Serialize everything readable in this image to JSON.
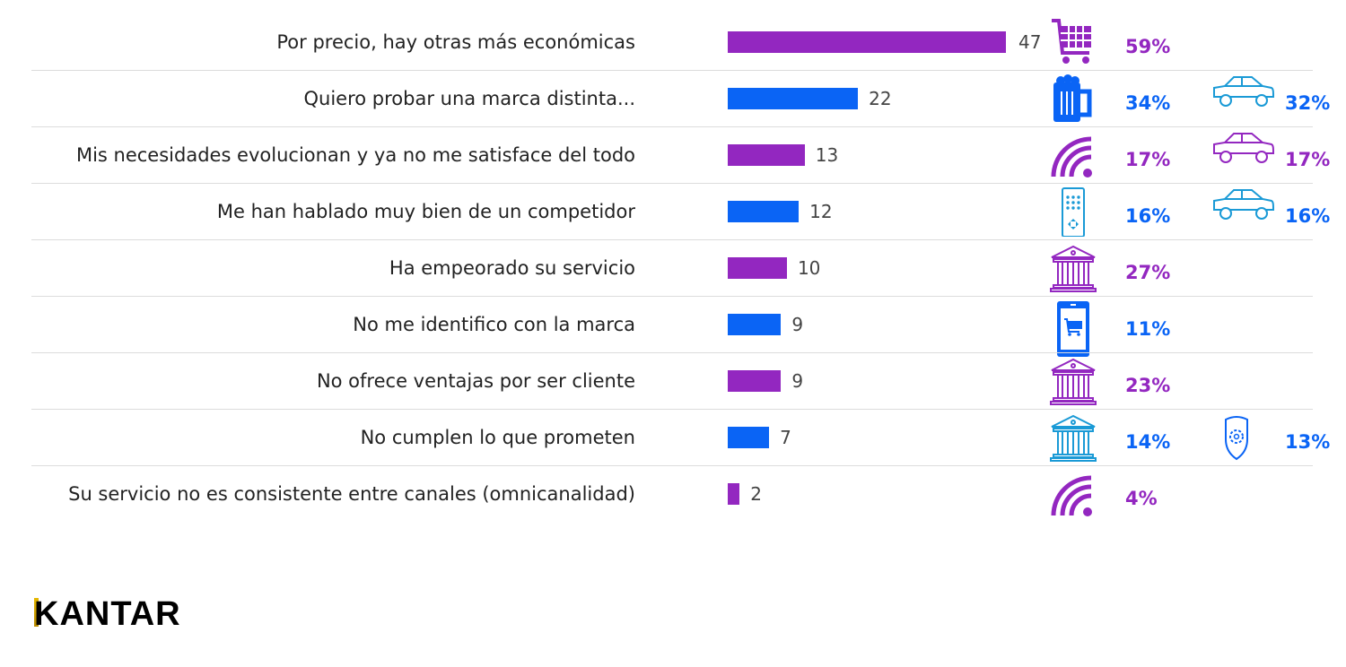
{
  "chart_data": {
    "type": "bar",
    "orientation": "horizontal",
    "categories": [
      "Por precio, hay otras más económicas",
      "Quiero probar una marca distinta...",
      "Mis necesidades evolucionan y ya no me satisface del todo",
      "Me han hablado muy bien de un competidor",
      "Ha empeorado su servicio",
      "No me identifico con la marca",
      "No ofrece ventajas por ser cliente",
      "No cumplen lo que prometen",
      "Su servicio no es consistente entre canales (omnicanalidad)"
    ],
    "values": [
      47,
      22,
      13,
      12,
      10,
      9,
      9,
      7,
      2
    ],
    "bar_colors": [
      "#9327c0",
      "#0a64f5",
      "#9327c0",
      "#0a64f5",
      "#9327c0",
      "#0a64f5",
      "#9327c0",
      "#0a64f5",
      "#9327c0"
    ],
    "grid": false,
    "annotations": [
      {
        "icon": "shopping-cart-icon",
        "pct": "59%",
        "color": "#9327c0"
      },
      {
        "icon": "beer-mug-icon",
        "pct": "34%",
        "color": "#0a64f5",
        "icon2": "car-icon",
        "pct2": "32%",
        "icon2_color": "#1a9ad6"
      },
      {
        "icon": "wifi-signal-icon",
        "pct": "17%",
        "color": "#9327c0",
        "icon2": "car-icon",
        "pct2": "17%",
        "icon2_color": "#9327c0"
      },
      {
        "icon": "remote-control-icon",
        "pct": "16%",
        "color": "#0a64f5",
        "icon2": "car-icon",
        "pct2": "16%",
        "icon2_color": "#1a9ad6"
      },
      {
        "icon": "bank-icon",
        "pct": "27%",
        "color": "#9327c0"
      },
      {
        "icon": "mobile-cart-icon",
        "pct": "11%",
        "color": "#0a64f5"
      },
      {
        "icon": "bank-icon",
        "pct": "23%",
        "color": "#9327c0"
      },
      {
        "icon": "bank-icon",
        "pct": "14%",
        "color": "#0a64f5",
        "icon_color": "#1a9ad6",
        "icon2": "shield-gear-icon",
        "pct2": "13%",
        "icon2_color": "#0a64f5"
      },
      {
        "icon": "wifi-signal-icon",
        "pct": "4%",
        "color": "#9327c0"
      }
    ]
  },
  "logo": {
    "text": "KANTAR"
  }
}
